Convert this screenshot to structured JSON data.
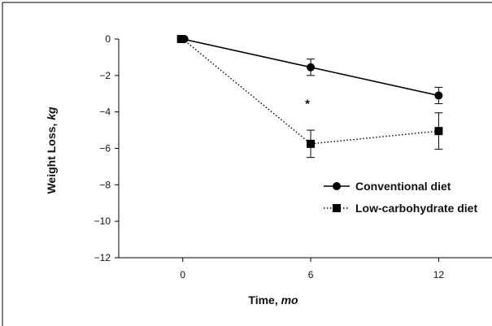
{
  "chart_data": {
    "type": "line",
    "xlabel": "Time, ",
    "xlabel_unit": "mo",
    "ylabel": "Weight Loss, ",
    "ylabel_unit": "kg",
    "xlim": [
      -3,
      14.5
    ],
    "ylim": [
      -12,
      0
    ],
    "x_ticks": [
      0,
      6,
      12
    ],
    "y_ticks": [
      0,
      -2,
      -4,
      -6,
      -8,
      -10,
      -12
    ],
    "x_tick_labels": [
      "0",
      "6",
      "12"
    ],
    "y_tick_labels": [
      "0",
      "−2",
      "−4",
      "−6",
      "−8",
      "−10",
      "−12"
    ],
    "grid": false,
    "legend_position": "right",
    "series": [
      {
        "name": "Conventional diet",
        "marker": "circle",
        "line_style": "solid",
        "points": [
          {
            "x": 0,
            "y": 0,
            "err": 0
          },
          {
            "x": 6,
            "y": -1.55,
            "err": 0.45
          },
          {
            "x": 12,
            "y": -3.1,
            "err": 0.45
          }
        ]
      },
      {
        "name": "Low-carbohydrate diet",
        "marker": "square",
        "line_style": "dotted",
        "points": [
          {
            "x": 0,
            "y": 0,
            "err": 0
          },
          {
            "x": 6,
            "y": -5.75,
            "err": 0.75
          },
          {
            "x": 12,
            "y": -5.05,
            "err": 1.0
          }
        ]
      }
    ],
    "annotations": [
      {
        "text": "*",
        "x": 6,
        "y": -3.6
      }
    ]
  }
}
